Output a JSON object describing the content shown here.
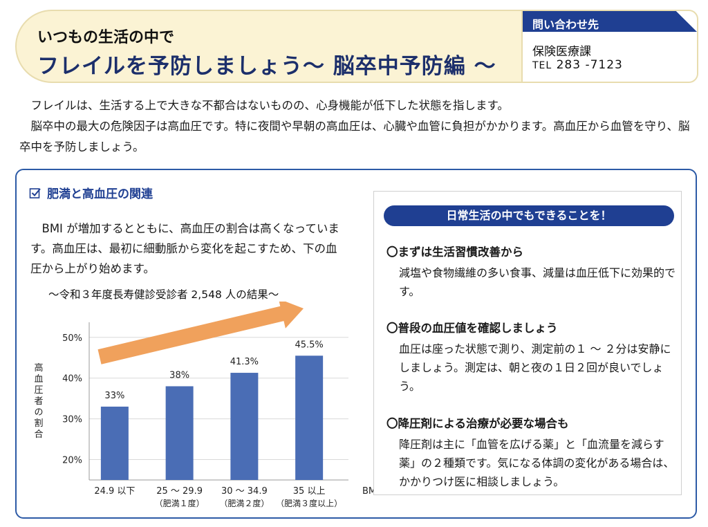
{
  "header": {
    "subtitle": "いつもの生活の中で",
    "title": "フレイルを予防しましょう～ 脳卒中予防編 ～",
    "contact_label": "問い合わせ先",
    "contact_dept": "保険医療課",
    "tel_label": "TEL",
    "tel_number": "283 -7123"
  },
  "intro": {
    "p1": "フレイルは、生活する上で大きな不都合はないものの、心身機能が低下した状態を指します。",
    "p2": "脳卒中の最大の危険因子は高血圧です。特に夜間や早朝の高血圧は、心臓や血管に負担がかかります。高血圧から血管を守り、脳卒中を予防しましょう。"
  },
  "section": {
    "title": "肥満と高血圧の関連",
    "text": "BMI が増加するとともに、高血圧の割合は高くなっています。高血圧は、最初に細動脈から変化を起こすため、下の血圧から上がり始めます。",
    "survey": "～令和３年度長寿健診受診者 2,548 人の結果～"
  },
  "chart_data": {
    "type": "bar",
    "categories": [
      "24.9 以下",
      "25 ～ 29.9",
      "30 ～ 34.9",
      "35 以上"
    ],
    "sublabels": [
      "",
      "（肥満１度）",
      "（肥満２度）",
      "（肥満３度以上）"
    ],
    "values": [
      33,
      38,
      41.3,
      45.5
    ],
    "value_labels": [
      "33%",
      "38%",
      "41.3%",
      "45.5%"
    ],
    "yticks": [
      "20%",
      "30%",
      "40%",
      "50%"
    ],
    "ytick_values": [
      20,
      30,
      40,
      50
    ],
    "ylim": [
      15,
      52
    ],
    "ylabel": "高血圧者の割合",
    "xlabel": "BMI",
    "grid": true,
    "bar_color": "#4a6db5",
    "arrow_color": "#f0a15c"
  },
  "panel": {
    "head": "日常生活の中でもできることを！",
    "tips": [
      {
        "title": "〇まずは生活習慣改善から",
        "body": "減塩や食物繊維の多い食事、減量は血圧低下に効果的です。"
      },
      {
        "title": "〇普段の血圧値を確認しましょう",
        "body": "血圧は座った状態で測り、測定前の１ ～ ２分は安静にしましょう。測定は、朝と夜の１日２回が良いでしょう。"
      },
      {
        "title": "〇降圧剤による治療が必要な場合も",
        "body": "降圧剤は主に「血管を広げる薬」と「血流量を減らす薬」の２種類です。気になる体調の変化がある場合は、かかりつけ医に相談しましょう。"
      }
    ]
  },
  "colors": {
    "navy": "#1f3f92",
    "header_bg": "#fbf3d4",
    "border_blue": "#2c5aa6"
  }
}
